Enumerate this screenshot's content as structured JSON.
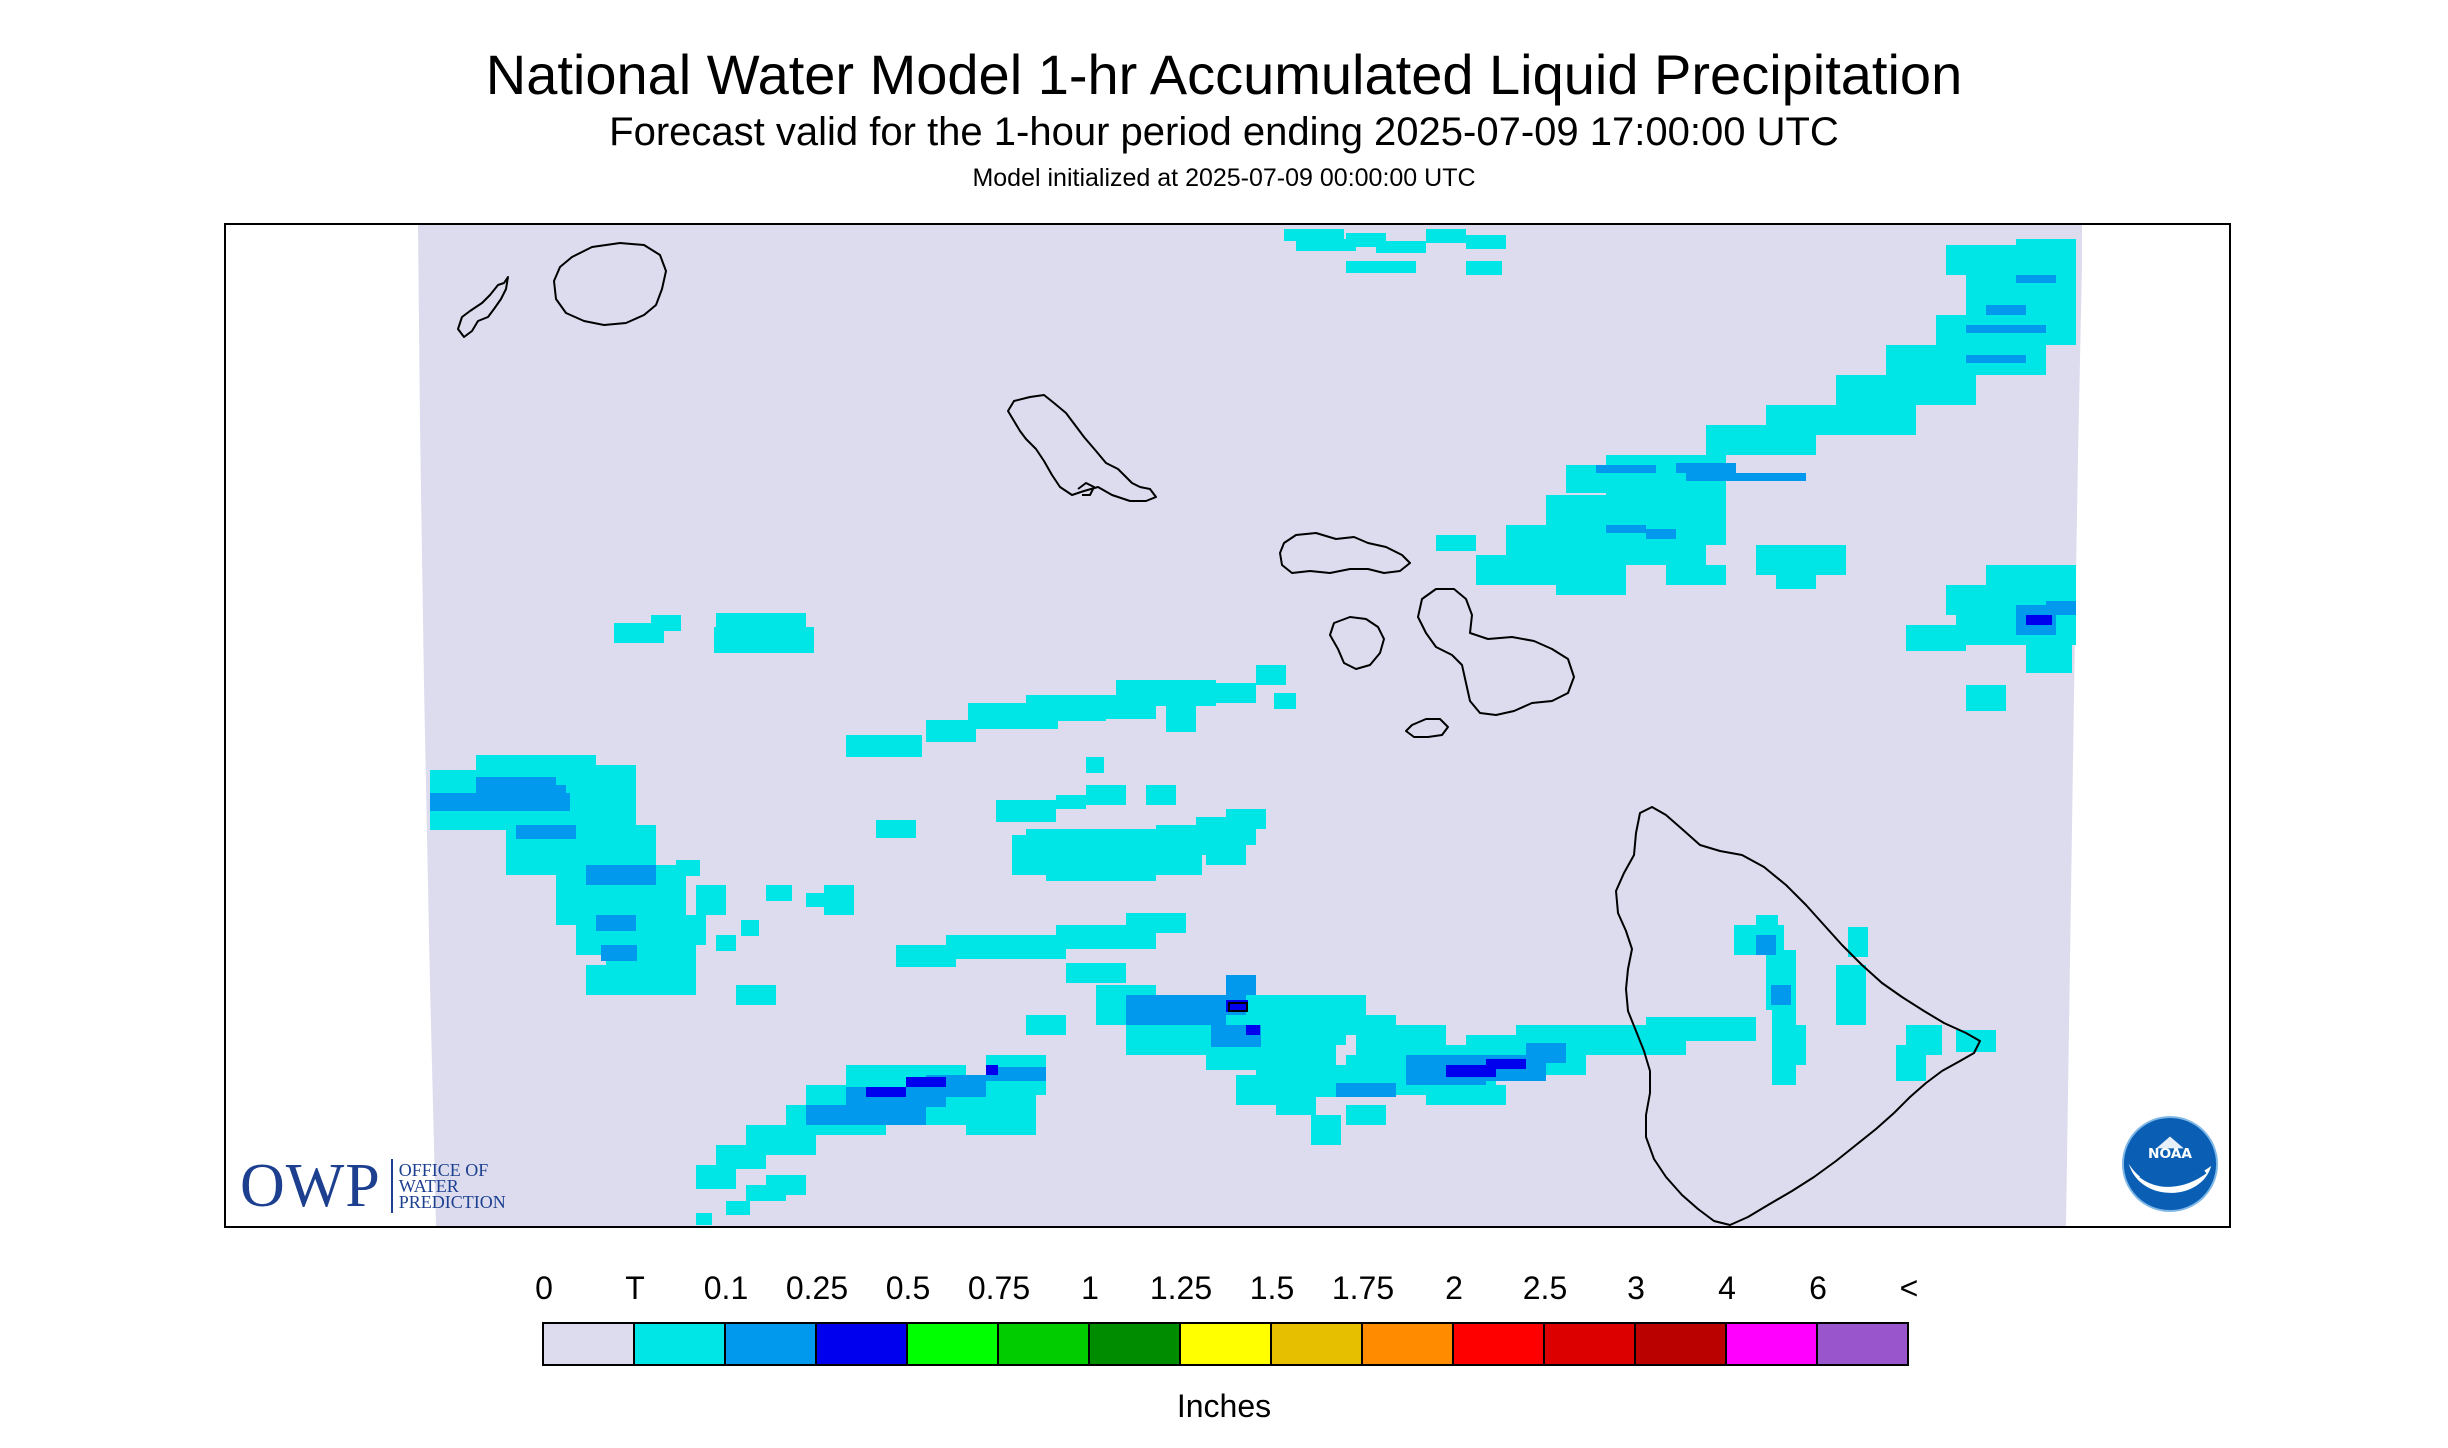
{
  "header": {
    "title": "National Water Model 1-hr Accumulated Liquid Precipitation",
    "subtitle": "Forecast valid for the 1-hour period ending 2025-07-09 17:00:00 UTC",
    "init": "Model initialized at 2025-07-09 00:00:00 UTC"
  },
  "logos": {
    "owp_letters": "OWP",
    "owp_line1": "OFFICE OF",
    "owp_line2": "WATER",
    "owp_line3": "PREDICTION",
    "noaa_text": "NOAA"
  },
  "legend": {
    "labels": [
      "0",
      "T",
      "0.1",
      "0.25",
      "0.5",
      "0.75",
      "1",
      "1.25",
      "1.5",
      "1.75",
      "2",
      "2.5",
      "3",
      "4",
      "6",
      "<"
    ],
    "colors": [
      "#dcdcee",
      "#00e6e6",
      "#0099ee",
      "#0000ee",
      "#00ff00",
      "#00cc00",
      "#008c00",
      "#ffff00",
      "#e6bf00",
      "#ff8c00",
      "#ff0000",
      "#dd0000",
      "#bb0000",
      "#ff00ff",
      "#9955cc"
    ],
    "units": "Inches"
  },
  "map": {
    "background_color": "#dcdcee",
    "coast_color": "#000000"
  }
}
